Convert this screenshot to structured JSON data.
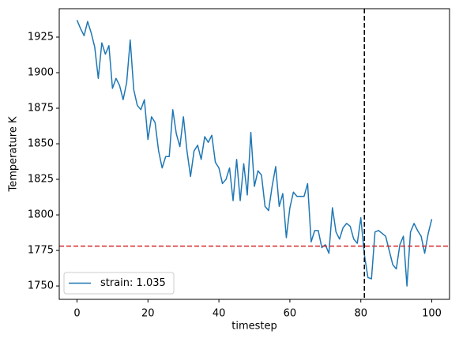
{
  "chart_data": {
    "type": "line",
    "xlabel": "timestep",
    "ylabel": "Temperature K",
    "x": [
      0,
      1,
      2,
      3,
      4,
      5,
      6,
      7,
      8,
      9,
      10,
      11,
      12,
      13,
      14,
      15,
      16,
      17,
      18,
      19,
      20,
      21,
      22,
      23,
      24,
      25,
      26,
      27,
      28,
      29,
      30,
      31,
      32,
      33,
      34,
      35,
      36,
      37,
      38,
      39,
      40,
      41,
      42,
      43,
      44,
      45,
      46,
      47,
      48,
      49,
      50,
      51,
      52,
      53,
      54,
      55,
      56,
      57,
      58,
      59,
      60,
      61,
      62,
      63,
      64,
      65,
      66,
      67,
      68,
      69,
      70,
      71,
      72,
      73,
      74,
      75,
      76,
      77,
      78,
      79,
      80,
      81,
      82,
      83,
      84,
      85,
      86,
      87,
      88,
      89,
      90,
      91,
      92,
      93,
      94,
      95,
      96,
      97,
      98,
      99,
      100
    ],
    "series": [
      {
        "name": "strain: 1.035",
        "color": "#1f77b4",
        "values": [
          1937,
          1931,
          1926,
          1936,
          1928,
          1918,
          1896,
          1921,
          1913,
          1919,
          1889,
          1896,
          1891,
          1881,
          1893,
          1923,
          1888,
          1877,
          1874,
          1881,
          1853,
          1869,
          1865,
          1845,
          1833,
          1841,
          1841,
          1874,
          1857,
          1848,
          1869,
          1845,
          1827,
          1845,
          1849,
          1839,
          1855,
          1851,
          1856,
          1837,
          1833,
          1822,
          1825,
          1833,
          1810,
          1839,
          1810,
          1836,
          1814,
          1858,
          1820,
          1831,
          1828,
          1806,
          1803,
          1820,
          1834,
          1806,
          1815,
          1784,
          1805,
          1816,
          1813,
          1813,
          1813,
          1822,
          1781,
          1789,
          1789,
          1777,
          1779,
          1773,
          1805,
          1788,
          1783,
          1791,
          1794,
          1792,
          1783,
          1780,
          1798,
          1772,
          1756,
          1755,
          1788,
          1789,
          1787,
          1785,
          1775,
          1765,
          1762,
          1779,
          1785,
          1750,
          1788,
          1794,
          1789,
          1785,
          1773,
          1787,
          1797
        ]
      }
    ],
    "hline": {
      "value": 1778,
      "color": "#d62728"
    },
    "vline": {
      "value": 81,
      "color": "#000000"
    },
    "xlim": [
      -5,
      105
    ],
    "ylim": [
      1740.6,
      1945
    ],
    "xticks": [
      0,
      20,
      40,
      60,
      80,
      100
    ],
    "yticks": [
      1750,
      1775,
      1800,
      1825,
      1850,
      1875,
      1900,
      1925
    ],
    "legend": "lower left",
    "grid": false
  }
}
